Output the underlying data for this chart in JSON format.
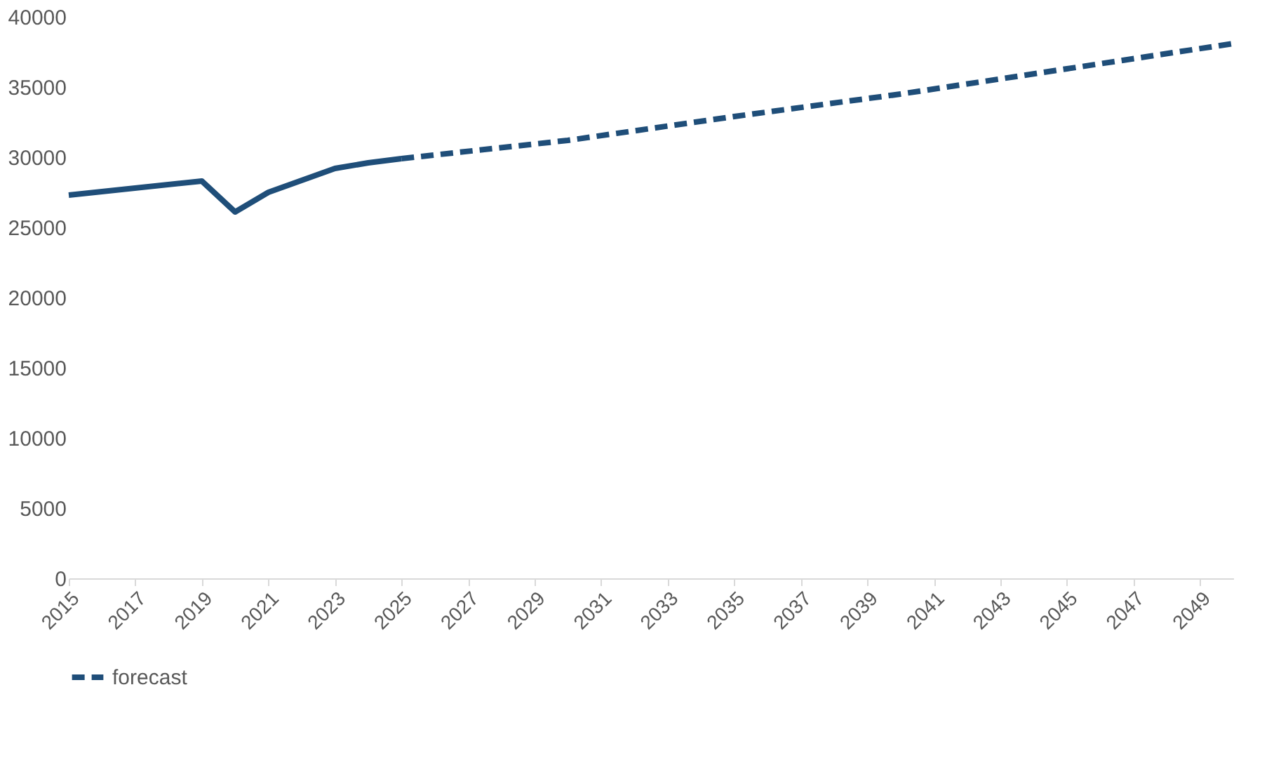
{
  "chart_data": {
    "type": "line",
    "xlim": [
      2015,
      2050
    ],
    "xticks": [
      2015,
      2017,
      2019,
      2021,
      2023,
      2025,
      2027,
      2029,
      2031,
      2033,
      2035,
      2037,
      2039,
      2041,
      2043,
      2045,
      2047,
      2049
    ],
    "ylim": [
      0,
      40000
    ],
    "yticks": [
      0,
      5000,
      10000,
      15000,
      20000,
      25000,
      30000,
      35000,
      40000
    ],
    "grid": false,
    "legend": "bottom",
    "marker": "none",
    "series": [
      {
        "color": "#1f4e79",
        "line_style": "solid",
        "x": [
          2015,
          2019,
          2020,
          2021,
          2023,
          2024,
          2025
        ],
        "values": [
          27300,
          28300,
          26100,
          27500,
          29200,
          29600,
          29900
        ]
      },
      {
        "name": "forecast",
        "color": "#1f4e79",
        "line_style": "dashed",
        "x": [
          2025,
          2030,
          2035,
          2040,
          2045,
          2050
        ],
        "values": [
          29900,
          31200,
          32900,
          34500,
          36300,
          38100
        ]
      }
    ]
  }
}
